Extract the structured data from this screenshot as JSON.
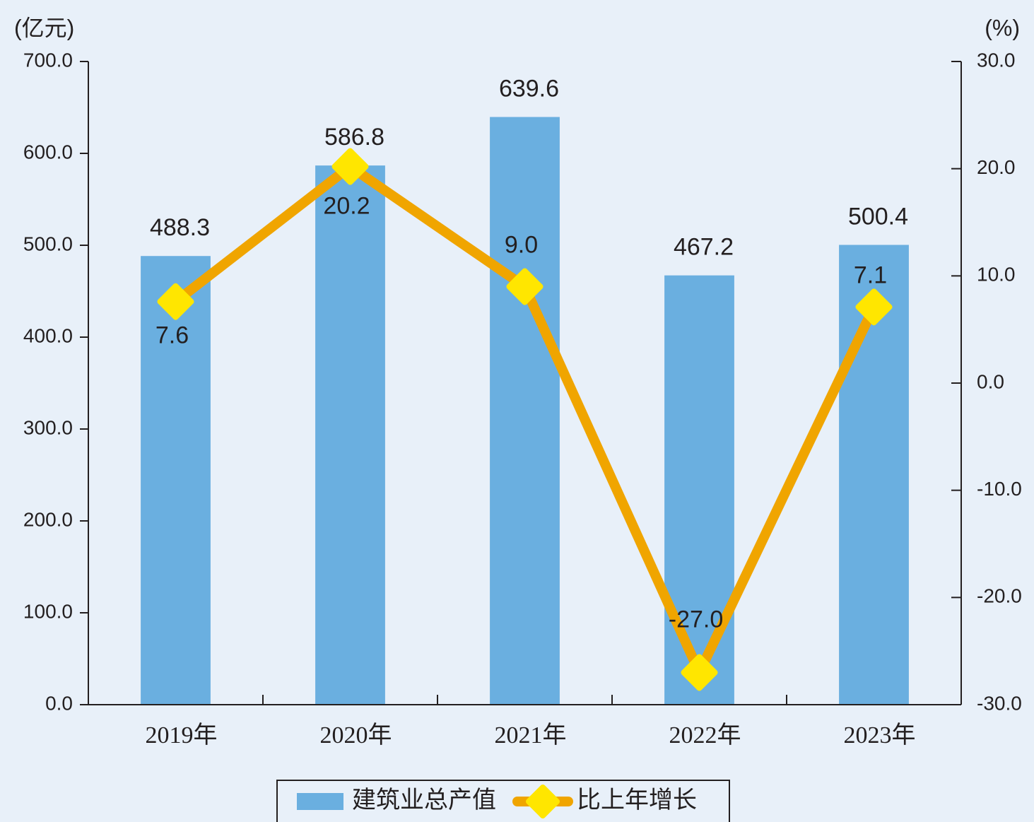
{
  "chart_data": {
    "type": "bar",
    "y_label": "(亿元)",
    "y2_label": "(%)",
    "categories": [
      "2019年",
      "2020年",
      "2021年",
      "2022年",
      "2023年"
    ],
    "series": [
      {
        "name": "建筑业总产值",
        "type": "bar",
        "color": "#6aafe0",
        "values": [
          488.3,
          586.8,
          639.6,
          467.2,
          500.4
        ]
      },
      {
        "name": "比上年增长",
        "type": "line",
        "axis": "y2",
        "color": "#f0a500",
        "marker_color": "#ffe600",
        "values": [
          7.6,
          20.2,
          9,
          -27,
          7.1
        ],
        "value_labels": [
          "7.6",
          "20.2",
          "9.0",
          "-27.0",
          "7.1"
        ]
      }
    ],
    "ylim": [
      0,
      700
    ],
    "yticks": [
      {
        "value": 0,
        "label": "0.0"
      },
      {
        "value": 100,
        "label": "100.0"
      },
      {
        "value": 200,
        "label": "200.0"
      },
      {
        "value": 300,
        "label": "300.0"
      },
      {
        "value": 400,
        "label": "400.0"
      },
      {
        "value": 500,
        "label": "500.0"
      },
      {
        "value": 600,
        "label": "600.0"
      },
      {
        "value": 700,
        "label": "700.0"
      }
    ],
    "y2lim": [
      -30,
      30
    ],
    "y2ticks": [
      {
        "value": -30,
        "label": "-30.0"
      },
      {
        "value": -20,
        "label": "-20.0"
      },
      {
        "value": -10,
        "label": "-10.0"
      },
      {
        "value": 0,
        "label": "0.0"
      },
      {
        "value": 10,
        "label": "10.0"
      },
      {
        "value": 20,
        "label": "20.0"
      },
      {
        "value": 30,
        "label": "30.0"
      }
    ],
    "legend": "bottom"
  }
}
